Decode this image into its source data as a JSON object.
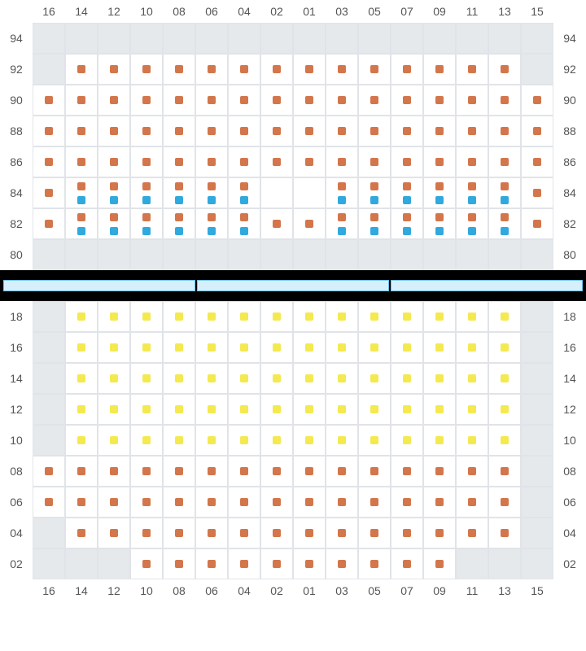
{
  "colors": {
    "orange": "#d4764c",
    "blue": "#30a9de",
    "yellow": "#f4e94f",
    "nocell": "#e6e9ec",
    "grid": "#e0e4e8",
    "label": "#555555",
    "black": "#000000",
    "divider_fill": "#d7effb",
    "divider_border": "#6dc1e8"
  },
  "columns": [
    "16",
    "14",
    "12",
    "10",
    "08",
    "06",
    "04",
    "02",
    "01",
    "03",
    "05",
    "07",
    "09",
    "11",
    "13",
    "15"
  ],
  "top": {
    "row_labels": [
      "94",
      "92",
      "90",
      "88",
      "86",
      "84",
      "82",
      "80"
    ],
    "rows": [
      [
        {
          "t": "n"
        },
        {
          "t": "n"
        },
        {
          "t": "n"
        },
        {
          "t": "n"
        },
        {
          "t": "n"
        },
        {
          "t": "n"
        },
        {
          "t": "n"
        },
        {
          "t": "n"
        },
        {
          "t": "n"
        },
        {
          "t": "n"
        },
        {
          "t": "n"
        },
        {
          "t": "n"
        },
        {
          "t": "n"
        },
        {
          "t": "n"
        },
        {
          "t": "n"
        },
        {
          "t": "n"
        }
      ],
      [
        {
          "t": "n"
        },
        {
          "t": "s",
          "c": "orange"
        },
        {
          "t": "s",
          "c": "orange"
        },
        {
          "t": "s",
          "c": "orange"
        },
        {
          "t": "s",
          "c": "orange"
        },
        {
          "t": "s",
          "c": "orange"
        },
        {
          "t": "s",
          "c": "orange"
        },
        {
          "t": "s",
          "c": "orange"
        },
        {
          "t": "s",
          "c": "orange"
        },
        {
          "t": "s",
          "c": "orange"
        },
        {
          "t": "s",
          "c": "orange"
        },
        {
          "t": "s",
          "c": "orange"
        },
        {
          "t": "s",
          "c": "orange"
        },
        {
          "t": "s",
          "c": "orange"
        },
        {
          "t": "s",
          "c": "orange"
        },
        {
          "t": "n"
        }
      ],
      [
        {
          "t": "s",
          "c": "orange"
        },
        {
          "t": "s",
          "c": "orange"
        },
        {
          "t": "s",
          "c": "orange"
        },
        {
          "t": "s",
          "c": "orange"
        },
        {
          "t": "s",
          "c": "orange"
        },
        {
          "t": "s",
          "c": "orange"
        },
        {
          "t": "s",
          "c": "orange"
        },
        {
          "t": "s",
          "c": "orange"
        },
        {
          "t": "s",
          "c": "orange"
        },
        {
          "t": "s",
          "c": "orange"
        },
        {
          "t": "s",
          "c": "orange"
        },
        {
          "t": "s",
          "c": "orange"
        },
        {
          "t": "s",
          "c": "orange"
        },
        {
          "t": "s",
          "c": "orange"
        },
        {
          "t": "s",
          "c": "orange"
        },
        {
          "t": "s",
          "c": "orange"
        }
      ],
      [
        {
          "t": "s",
          "c": "orange"
        },
        {
          "t": "s",
          "c": "orange"
        },
        {
          "t": "s",
          "c": "orange"
        },
        {
          "t": "s",
          "c": "orange"
        },
        {
          "t": "s",
          "c": "orange"
        },
        {
          "t": "s",
          "c": "orange"
        },
        {
          "t": "s",
          "c": "orange"
        },
        {
          "t": "s",
          "c": "orange"
        },
        {
          "t": "s",
          "c": "orange"
        },
        {
          "t": "s",
          "c": "orange"
        },
        {
          "t": "s",
          "c": "orange"
        },
        {
          "t": "s",
          "c": "orange"
        },
        {
          "t": "s",
          "c": "orange"
        },
        {
          "t": "s",
          "c": "orange"
        },
        {
          "t": "s",
          "c": "orange"
        },
        {
          "t": "s",
          "c": "orange"
        }
      ],
      [
        {
          "t": "s",
          "c": "orange"
        },
        {
          "t": "s",
          "c": "orange"
        },
        {
          "t": "s",
          "c": "orange"
        },
        {
          "t": "s",
          "c": "orange"
        },
        {
          "t": "s",
          "c": "orange"
        },
        {
          "t": "s",
          "c": "orange"
        },
        {
          "t": "s",
          "c": "orange"
        },
        {
          "t": "s",
          "c": "orange"
        },
        {
          "t": "s",
          "c": "orange"
        },
        {
          "t": "s",
          "c": "orange"
        },
        {
          "t": "s",
          "c": "orange"
        },
        {
          "t": "s",
          "c": "orange"
        },
        {
          "t": "s",
          "c": "orange"
        },
        {
          "t": "s",
          "c": "orange"
        },
        {
          "t": "s",
          "c": "orange"
        },
        {
          "t": "s",
          "c": "orange"
        }
      ],
      [
        {
          "t": "s",
          "c": "orange"
        },
        {
          "t": "d",
          "c": "orange",
          "b": "blue"
        },
        {
          "t": "d",
          "c": "orange",
          "b": "blue"
        },
        {
          "t": "d",
          "c": "orange",
          "b": "blue"
        },
        {
          "t": "d",
          "c": "orange",
          "b": "blue"
        },
        {
          "t": "d",
          "c": "orange",
          "b": "blue"
        },
        {
          "t": "d",
          "c": "orange",
          "b": "blue"
        },
        {
          "t": "e"
        },
        {
          "t": "e"
        },
        {
          "t": "d",
          "c": "orange",
          "b": "blue"
        },
        {
          "t": "d",
          "c": "orange",
          "b": "blue"
        },
        {
          "t": "d",
          "c": "orange",
          "b": "blue"
        },
        {
          "t": "d",
          "c": "orange",
          "b": "blue"
        },
        {
          "t": "d",
          "c": "orange",
          "b": "blue"
        },
        {
          "t": "d",
          "c": "orange",
          "b": "blue"
        },
        {
          "t": "s",
          "c": "orange"
        }
      ],
      [
        {
          "t": "s",
          "c": "orange"
        },
        {
          "t": "d",
          "c": "orange",
          "b": "blue"
        },
        {
          "t": "d",
          "c": "orange",
          "b": "blue"
        },
        {
          "t": "d",
          "c": "orange",
          "b": "blue"
        },
        {
          "t": "d",
          "c": "orange",
          "b": "blue"
        },
        {
          "t": "d",
          "c": "orange",
          "b": "blue"
        },
        {
          "t": "d",
          "c": "orange",
          "b": "blue"
        },
        {
          "t": "s",
          "c": "orange"
        },
        {
          "t": "s",
          "c": "orange"
        },
        {
          "t": "d",
          "c": "orange",
          "b": "blue"
        },
        {
          "t": "d",
          "c": "orange",
          "b": "blue"
        },
        {
          "t": "d",
          "c": "orange",
          "b": "blue"
        },
        {
          "t": "d",
          "c": "orange",
          "b": "blue"
        },
        {
          "t": "d",
          "c": "orange",
          "b": "blue"
        },
        {
          "t": "d",
          "c": "orange",
          "b": "blue"
        },
        {
          "t": "s",
          "c": "orange"
        }
      ],
      [
        {
          "t": "n"
        },
        {
          "t": "n"
        },
        {
          "t": "n"
        },
        {
          "t": "n"
        },
        {
          "t": "n"
        },
        {
          "t": "n"
        },
        {
          "t": "n"
        },
        {
          "t": "n"
        },
        {
          "t": "n"
        },
        {
          "t": "n"
        },
        {
          "t": "n"
        },
        {
          "t": "n"
        },
        {
          "t": "n"
        },
        {
          "t": "n"
        },
        {
          "t": "n"
        },
        {
          "t": "n"
        }
      ]
    ]
  },
  "bottom": {
    "row_labels": [
      "18",
      "16",
      "14",
      "12",
      "10",
      "08",
      "06",
      "04",
      "02"
    ],
    "rows": [
      [
        {
          "t": "n"
        },
        {
          "t": "s",
          "c": "yellow"
        },
        {
          "t": "s",
          "c": "yellow"
        },
        {
          "t": "s",
          "c": "yellow"
        },
        {
          "t": "s",
          "c": "yellow"
        },
        {
          "t": "s",
          "c": "yellow"
        },
        {
          "t": "s",
          "c": "yellow"
        },
        {
          "t": "s",
          "c": "yellow"
        },
        {
          "t": "s",
          "c": "yellow"
        },
        {
          "t": "s",
          "c": "yellow"
        },
        {
          "t": "s",
          "c": "yellow"
        },
        {
          "t": "s",
          "c": "yellow"
        },
        {
          "t": "s",
          "c": "yellow"
        },
        {
          "t": "s",
          "c": "yellow"
        },
        {
          "t": "s",
          "c": "yellow"
        },
        {
          "t": "n"
        }
      ],
      [
        {
          "t": "n"
        },
        {
          "t": "s",
          "c": "yellow"
        },
        {
          "t": "s",
          "c": "yellow"
        },
        {
          "t": "s",
          "c": "yellow"
        },
        {
          "t": "s",
          "c": "yellow"
        },
        {
          "t": "s",
          "c": "yellow"
        },
        {
          "t": "s",
          "c": "yellow"
        },
        {
          "t": "s",
          "c": "yellow"
        },
        {
          "t": "s",
          "c": "yellow"
        },
        {
          "t": "s",
          "c": "yellow"
        },
        {
          "t": "s",
          "c": "yellow"
        },
        {
          "t": "s",
          "c": "yellow"
        },
        {
          "t": "s",
          "c": "yellow"
        },
        {
          "t": "s",
          "c": "yellow"
        },
        {
          "t": "s",
          "c": "yellow"
        },
        {
          "t": "n"
        }
      ],
      [
        {
          "t": "n"
        },
        {
          "t": "s",
          "c": "yellow"
        },
        {
          "t": "s",
          "c": "yellow"
        },
        {
          "t": "s",
          "c": "yellow"
        },
        {
          "t": "s",
          "c": "yellow"
        },
        {
          "t": "s",
          "c": "yellow"
        },
        {
          "t": "s",
          "c": "yellow"
        },
        {
          "t": "s",
          "c": "yellow"
        },
        {
          "t": "s",
          "c": "yellow"
        },
        {
          "t": "s",
          "c": "yellow"
        },
        {
          "t": "s",
          "c": "yellow"
        },
        {
          "t": "s",
          "c": "yellow"
        },
        {
          "t": "s",
          "c": "yellow"
        },
        {
          "t": "s",
          "c": "yellow"
        },
        {
          "t": "s",
          "c": "yellow"
        },
        {
          "t": "n"
        }
      ],
      [
        {
          "t": "n"
        },
        {
          "t": "s",
          "c": "yellow"
        },
        {
          "t": "s",
          "c": "yellow"
        },
        {
          "t": "s",
          "c": "yellow"
        },
        {
          "t": "s",
          "c": "yellow"
        },
        {
          "t": "s",
          "c": "yellow"
        },
        {
          "t": "s",
          "c": "yellow"
        },
        {
          "t": "s",
          "c": "yellow"
        },
        {
          "t": "s",
          "c": "yellow"
        },
        {
          "t": "s",
          "c": "yellow"
        },
        {
          "t": "s",
          "c": "yellow"
        },
        {
          "t": "s",
          "c": "yellow"
        },
        {
          "t": "s",
          "c": "yellow"
        },
        {
          "t": "s",
          "c": "yellow"
        },
        {
          "t": "s",
          "c": "yellow"
        },
        {
          "t": "n"
        }
      ],
      [
        {
          "t": "n"
        },
        {
          "t": "s",
          "c": "yellow"
        },
        {
          "t": "s",
          "c": "yellow"
        },
        {
          "t": "s",
          "c": "yellow"
        },
        {
          "t": "s",
          "c": "yellow"
        },
        {
          "t": "s",
          "c": "yellow"
        },
        {
          "t": "s",
          "c": "yellow"
        },
        {
          "t": "s",
          "c": "yellow"
        },
        {
          "t": "s",
          "c": "yellow"
        },
        {
          "t": "s",
          "c": "yellow"
        },
        {
          "t": "s",
          "c": "yellow"
        },
        {
          "t": "s",
          "c": "yellow"
        },
        {
          "t": "s",
          "c": "yellow"
        },
        {
          "t": "s",
          "c": "yellow"
        },
        {
          "t": "s",
          "c": "yellow"
        },
        {
          "t": "n"
        }
      ],
      [
        {
          "t": "s",
          "c": "orange"
        },
        {
          "t": "s",
          "c": "orange"
        },
        {
          "t": "s",
          "c": "orange"
        },
        {
          "t": "s",
          "c": "orange"
        },
        {
          "t": "s",
          "c": "orange"
        },
        {
          "t": "s",
          "c": "orange"
        },
        {
          "t": "s",
          "c": "orange"
        },
        {
          "t": "s",
          "c": "orange"
        },
        {
          "t": "s",
          "c": "orange"
        },
        {
          "t": "s",
          "c": "orange"
        },
        {
          "t": "s",
          "c": "orange"
        },
        {
          "t": "s",
          "c": "orange"
        },
        {
          "t": "s",
          "c": "orange"
        },
        {
          "t": "s",
          "c": "orange"
        },
        {
          "t": "s",
          "c": "orange"
        },
        {
          "t": "n"
        }
      ],
      [
        {
          "t": "s",
          "c": "orange"
        },
        {
          "t": "s",
          "c": "orange"
        },
        {
          "t": "s",
          "c": "orange"
        },
        {
          "t": "s",
          "c": "orange"
        },
        {
          "t": "s",
          "c": "orange"
        },
        {
          "t": "s",
          "c": "orange"
        },
        {
          "t": "s",
          "c": "orange"
        },
        {
          "t": "s",
          "c": "orange"
        },
        {
          "t": "s",
          "c": "orange"
        },
        {
          "t": "s",
          "c": "orange"
        },
        {
          "t": "s",
          "c": "orange"
        },
        {
          "t": "s",
          "c": "orange"
        },
        {
          "t": "s",
          "c": "orange"
        },
        {
          "t": "s",
          "c": "orange"
        },
        {
          "t": "s",
          "c": "orange"
        },
        {
          "t": "n"
        }
      ],
      [
        {
          "t": "n"
        },
        {
          "t": "s",
          "c": "orange"
        },
        {
          "t": "s",
          "c": "orange"
        },
        {
          "t": "s",
          "c": "orange"
        },
        {
          "t": "s",
          "c": "orange"
        },
        {
          "t": "s",
          "c": "orange"
        },
        {
          "t": "s",
          "c": "orange"
        },
        {
          "t": "s",
          "c": "orange"
        },
        {
          "t": "s",
          "c": "orange"
        },
        {
          "t": "s",
          "c": "orange"
        },
        {
          "t": "s",
          "c": "orange"
        },
        {
          "t": "s",
          "c": "orange"
        },
        {
          "t": "s",
          "c": "orange"
        },
        {
          "t": "s",
          "c": "orange"
        },
        {
          "t": "s",
          "c": "orange"
        },
        {
          "t": "n"
        }
      ],
      [
        {
          "t": "n"
        },
        {
          "t": "n"
        },
        {
          "t": "n"
        },
        {
          "t": "s",
          "c": "orange"
        },
        {
          "t": "s",
          "c": "orange"
        },
        {
          "t": "s",
          "c": "orange"
        },
        {
          "t": "s",
          "c": "orange"
        },
        {
          "t": "s",
          "c": "orange"
        },
        {
          "t": "s",
          "c": "orange"
        },
        {
          "t": "s",
          "c": "orange"
        },
        {
          "t": "s",
          "c": "orange"
        },
        {
          "t": "s",
          "c": "orange"
        },
        {
          "t": "s",
          "c": "orange"
        },
        {
          "t": "n"
        },
        {
          "t": "n"
        },
        {
          "t": "n"
        }
      ]
    ]
  },
  "divider_bars": 3
}
